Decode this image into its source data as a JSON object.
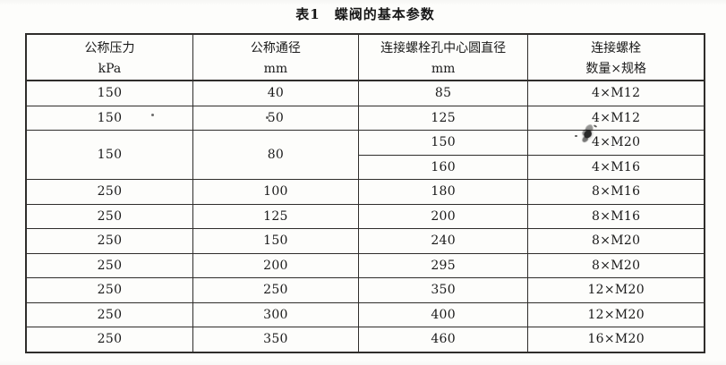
{
  "title": {
    "number": "表1",
    "caption": "蝶阀的基本参数"
  },
  "table": {
    "headers": [
      {
        "label": "公称压力",
        "unit": "kPa"
      },
      {
        "label": "公称通径",
        "unit": "mm"
      },
      {
        "label": "连接螺栓孔中心圆直径",
        "unit": "mm"
      },
      {
        "label": "连接螺栓",
        "unit": "数量×规格"
      }
    ],
    "rows": [
      {
        "pressure": "150",
        "dn": "40",
        "circle": "85",
        "bolts": "4×M12"
      },
      {
        "pressure": "150",
        "dn": "50",
        "circle": "125",
        "bolts": "4×M12"
      },
      {
        "pressure": "150",
        "dn": "80",
        "circle": "150",
        "bolts": "4×M20"
      },
      {
        "circle": "160",
        "bolts": "4×M16"
      },
      {
        "pressure": "250",
        "dn": "100",
        "circle": "180",
        "bolts": "8×M16"
      },
      {
        "pressure": "250",
        "dn": "125",
        "circle": "200",
        "bolts": "8×M16"
      },
      {
        "pressure": "250",
        "dn": "150",
        "circle": "240",
        "bolts": "8×M20"
      },
      {
        "pressure": "250",
        "dn": "200",
        "circle": "295",
        "bolts": "8×M20"
      },
      {
        "pressure": "250",
        "dn": "250",
        "circle": "350",
        "bolts": "12×M20"
      },
      {
        "pressure": "250",
        "dn": "300",
        "circle": "400",
        "bolts": "12×M20"
      },
      {
        "pressure": "250",
        "dn": "350",
        "circle": "460",
        "bolts": "16×M20"
      }
    ]
  },
  "colors": {
    "paper": "#fdfdfb",
    "ink": "#1c1c1c",
    "line": "#2f2d2b"
  }
}
